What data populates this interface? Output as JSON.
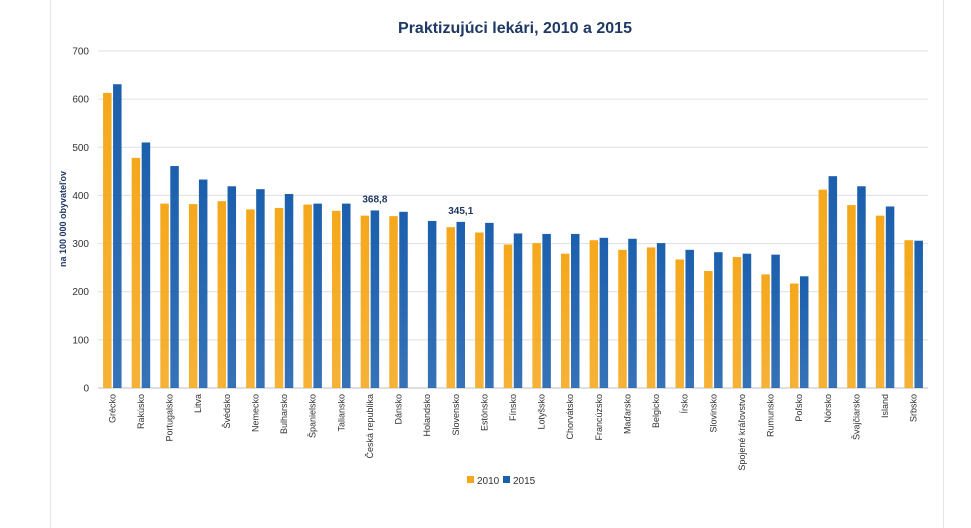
{
  "chart_data": {
    "type": "bar",
    "title": "Praktizujúci lekári, 2010 a 2015",
    "xlabel": "",
    "ylabel": "na 100 000 obyvateľov",
    "ylim": [
      0,
      700
    ],
    "yticks": [
      "0",
      "100",
      "200",
      "300",
      "400",
      "500",
      "600",
      "700"
    ],
    "grid": true,
    "legend_position": "bottom-center",
    "categories": [
      "Grécko",
      "Rakúsko",
      "Portugalsko",
      "Litva",
      "Švédsko",
      "Nemecko",
      "Bulharsko",
      "Španielsko",
      "Taliansko",
      "Česká republika",
      "Dánsko",
      "Holandsko",
      "Slovensko",
      "Estónsko",
      "Fínsko",
      "Lotyšsko",
      "Chorvátsko",
      "Francúzsko",
      "Maďarsko",
      "Belgicko",
      "Írsko",
      "Slovinsko",
      "Spojené kráľovstvo",
      "Rumunsko",
      "Poľsko",
      "Nórsko",
      "Švajčiarsko",
      "Island",
      "Srbsko"
    ],
    "series": [
      {
        "name": "2010",
        "color": "#f5a81c",
        "values": [
          613,
          478,
          383,
          382,
          388,
          371,
          374,
          381,
          368,
          358,
          357,
          null,
          334,
          323,
          298,
          301,
          279,
          307,
          287,
          292,
          267,
          243,
          272,
          236,
          217,
          412,
          380,
          358,
          307
        ]
      },
      {
        "name": "2015",
        "color": "#1b5fad",
        "values": [
          631,
          510,
          461,
          433,
          419,
          413,
          403,
          383,
          383,
          368.8,
          366,
          347,
          345.1,
          343,
          321,
          320,
          320,
          312,
          310,
          301,
          287,
          282,
          279,
          277,
          232,
          440,
          419,
          377,
          306
        ]
      }
    ],
    "annotations": [
      {
        "category": "Česká republika",
        "series": "2015",
        "text": "368,8"
      },
      {
        "category": "Slovensko",
        "series": "2015",
        "text": "345,1"
      }
    ]
  }
}
